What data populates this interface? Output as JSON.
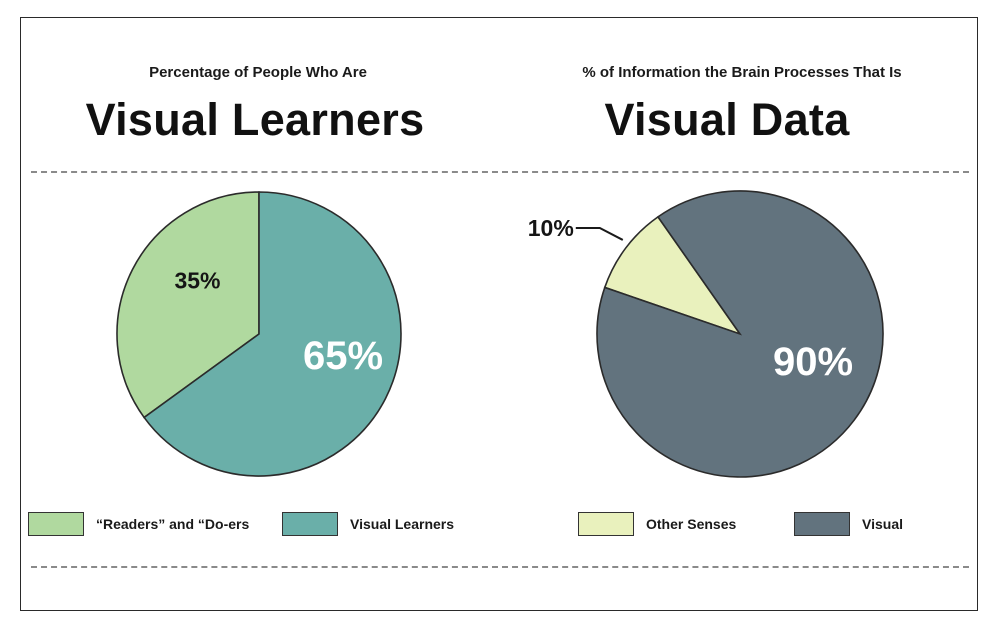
{
  "chart_data": [
    {
      "type": "pie",
      "subtitle": "Percentage of People Who Are",
      "title": "Visual Learners",
      "slices": [
        {
          "label": "“Readers” and “Do-ers",
          "value": 35,
          "display": "35%",
          "color": "#b0d99f"
        },
        {
          "label": "Visual Learners",
          "value": 65,
          "display": "65%",
          "color": "#6aafa9"
        }
      ],
      "legend_position": "bottom"
    },
    {
      "type": "pie",
      "subtitle": "% of Information the Brain Processes That Is",
      "title": "Visual Data",
      "slices": [
        {
          "label": "Other Senses",
          "value": 10,
          "display": "10%",
          "color": "#e9f1bd"
        },
        {
          "label": "Visual",
          "value": 90,
          "display": "90%",
          "color": "#62737e"
        }
      ],
      "legend_position": "bottom"
    }
  ]
}
